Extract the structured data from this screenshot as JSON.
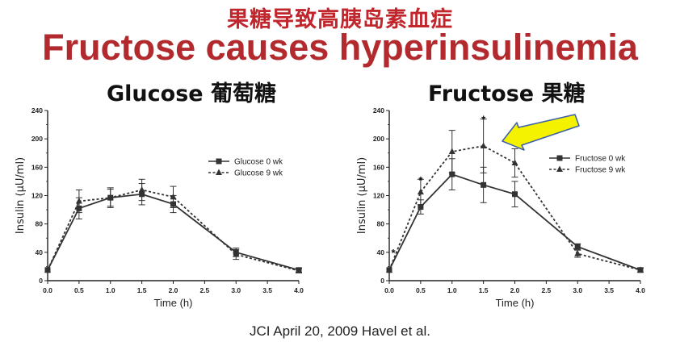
{
  "header": {
    "title_cn": "果糖导致高胰岛素血症",
    "title_en": "Fructose causes hyperinsulinemia"
  },
  "citation": "JCI April 20, 2009 Havel et al.",
  "colors": {
    "title_red": "#c0262c",
    "arrow_fill": "#f5f200",
    "arrow_stroke": "#3b5fa8",
    "series": "#333333"
  },
  "arrow_icon": "yellow-arrow-icon",
  "chart_data": [
    {
      "type": "line",
      "title": "Glucose 葡萄糖",
      "xlabel": "Time (h)",
      "ylabel": "Insulin (μU/ml)",
      "xlim": [
        0,
        4
      ],
      "ylim": [
        0,
        240
      ],
      "xticks": [
        "0.0",
        "0.5",
        "1.0",
        "1.5",
        "2.0",
        "2.5",
        "3.0",
        "3.5",
        "4.0"
      ],
      "yticks": [
        "0",
        "40",
        "80",
        "120",
        "160",
        "200",
        "240"
      ],
      "grid": false,
      "legend": "right",
      "x": [
        0,
        0.5,
        1.0,
        1.5,
        2.0,
        3.0,
        4.0
      ],
      "series": [
        {
          "name": "Glucose 0 wk",
          "style": "solid",
          "marker": "square",
          "values": [
            15,
            102,
            117,
            122,
            108,
            40,
            15
          ],
          "err": [
            0,
            15,
            12,
            15,
            12,
            6,
            3
          ]
        },
        {
          "name": "Glucose 9 wk",
          "style": "dotted",
          "marker": "triangle",
          "values": [
            15,
            112,
            117,
            128,
            118,
            37,
            14
          ],
          "err": [
            0,
            16,
            14,
            15,
            15,
            7,
            3
          ]
        }
      ],
      "annotations": []
    },
    {
      "type": "line",
      "title": "Fructose 果糖",
      "xlabel": "Time (h)",
      "ylabel": "Insulin (μU/ml)",
      "xlim": [
        0,
        4
      ],
      "ylim": [
        0,
        240
      ],
      "xticks": [
        "0.0",
        "0.5",
        "1.0",
        "1.5",
        "2.0",
        "2.5",
        "3.0",
        "3.5",
        "4.0"
      ],
      "yticks": [
        "0",
        "40",
        "80",
        "120",
        "160",
        "200",
        "240"
      ],
      "grid": false,
      "legend": "right",
      "x": [
        0,
        0.5,
        1.0,
        1.5,
        2.0,
        3.0,
        4.0
      ],
      "series": [
        {
          "name": "Fructose 0 wk",
          "style": "solid",
          "marker": "square",
          "values": [
            15,
            104,
            150,
            135,
            122,
            48,
            15
          ],
          "err": [
            0,
            10,
            22,
            25,
            18,
            4,
            3
          ]
        },
        {
          "name": "Fructose 9 wk",
          "style": "dotted",
          "marker": "triangle",
          "values": [
            15,
            125,
            182,
            190,
            166,
            38,
            15
          ],
          "err": [
            0,
            18,
            30,
            38,
            20,
            5,
            3
          ]
        }
      ],
      "annotations": [
        {
          "x": 0,
          "y": 40,
          "text": "*"
        },
        {
          "x": 0.5,
          "y": 142,
          "text": "*"
        },
        {
          "x": 1.5,
          "y": 228,
          "text": "*"
        }
      ]
    }
  ]
}
